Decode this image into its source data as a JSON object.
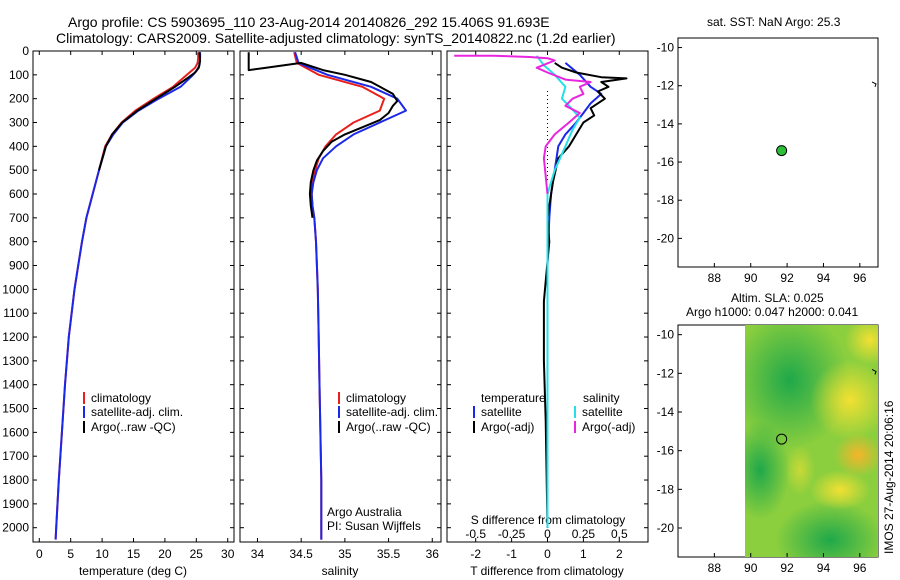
{
  "header": {
    "title_line1": "Argo profile: CS 5903695_110 23-Aug-2014 20140826_292 15.406S 91.693E",
    "title_line2": "Climatology: CARS2009. Satellite-adjusted climatology: synTS_20140822.nc (1.2d earlier)"
  },
  "side_label": "IMOS 27-Aug-2014 20:06:16",
  "colors": {
    "climatology": "#e8201c",
    "satellite": "#1c28e8",
    "argo": "#000000",
    "sat_diff": "#26e0e8",
    "argo_diff": "#e826e0",
    "marker": "#2bbf3a"
  },
  "chart_data": [
    {
      "type": "line",
      "xlabel": "temperature (deg C)",
      "ylabel": "",
      "xlim": [
        -1,
        31
      ],
      "ylim": [
        2060,
        0
      ],
      "xticks": [
        "0",
        "5",
        "10",
        "15",
        "20",
        "25",
        "30"
      ],
      "yticks": [
        "0",
        "100",
        "200",
        "300",
        "400",
        "500",
        "600",
        "700",
        "800",
        "900",
        "1000",
        "1100",
        "1200",
        "1300",
        "1400",
        "1500",
        "1600",
        "1700",
        "1800",
        "1900",
        "2000"
      ],
      "legend": [
        "climatology",
        "satellite-adj. clim.",
        "Argo(..raw -QC)"
      ],
      "series": [
        {
          "name": "climatology",
          "color": "#e8201c",
          "points": [
            [
              25.3,
              5
            ],
            [
              25.3,
              30
            ],
            [
              25.2,
              50
            ],
            [
              24.8,
              70
            ],
            [
              23.5,
              100
            ],
            [
              21.3,
              150
            ],
            [
              18.2,
              200
            ],
            [
              15.3,
              250
            ],
            [
              13.1,
              300
            ],
            [
              11.6,
              350
            ],
            [
              10.5,
              400
            ],
            [
              9.5,
              500
            ],
            [
              8.5,
              600
            ],
            [
              7.5,
              700
            ],
            [
              6.8,
              800
            ],
            [
              6.2,
              900
            ],
            [
              5.6,
              1000
            ],
            [
              4.7,
              1200
            ],
            [
              4.1,
              1400
            ],
            [
              3.6,
              1600
            ],
            [
              3.1,
              1800
            ],
            [
              2.7,
              2000
            ],
            [
              2.6,
              2050
            ]
          ]
        },
        {
          "name": "satellite-adj. clim.",
          "color": "#1c28e8",
          "points": [
            [
              25.6,
              5
            ],
            [
              25.6,
              30
            ],
            [
              25.5,
              60
            ],
            [
              25.1,
              80
            ],
            [
              24.5,
              100
            ],
            [
              22.5,
              150
            ],
            [
              19.0,
              200
            ],
            [
              15.8,
              250
            ],
            [
              13.3,
              300
            ],
            [
              11.8,
              350
            ],
            [
              10.6,
              400
            ],
            [
              9.5,
              500
            ],
            [
              8.5,
              600
            ],
            [
              7.5,
              700
            ],
            [
              6.8,
              800
            ],
            [
              6.2,
              900
            ],
            [
              5.6,
              1000
            ],
            [
              4.7,
              1200
            ],
            [
              4.1,
              1400
            ],
            [
              3.6,
              1600
            ],
            [
              3.1,
              1800
            ],
            [
              2.7,
              2000
            ],
            [
              2.6,
              2050
            ]
          ]
        },
        {
          "name": "Argo(..raw -QC)",
          "color": "#000000",
          "points": [
            [
              25.5,
              5
            ],
            [
              25.6,
              40
            ],
            [
              25.4,
              70
            ],
            [
              24.8,
              90
            ],
            [
              23.8,
              110
            ],
            [
              21.6,
              150
            ],
            [
              18.6,
              200
            ],
            [
              15.6,
              250
            ],
            [
              13.2,
              300
            ],
            [
              11.6,
              350
            ],
            [
              10.6,
              400
            ],
            [
              9.5,
              500
            ]
          ]
        }
      ]
    },
    {
      "type": "line",
      "xlabel": "salinity",
      "xlim": [
        33.8,
        36.1
      ],
      "ylim": [
        2060,
        0
      ],
      "xticks": [
        "34",
        "34.5",
        "35",
        "35.5",
        "36"
      ],
      "legend": [
        "climatology",
        "satellite-adj. clim.",
        "Argo(..raw -QC)"
      ],
      "annotation_line1": "Argo Australia",
      "annotation_line2": "PI: Susan Wijffels",
      "series": [
        {
          "name": "climatology",
          "color": "#e8201c",
          "points": [
            [
              34.42,
              5
            ],
            [
              34.45,
              50
            ],
            [
              34.7,
              100
            ],
            [
              35.2,
              150
            ],
            [
              35.45,
              200
            ],
            [
              35.4,
              250
            ],
            [
              35.1,
              300
            ],
            [
              34.9,
              350
            ],
            [
              34.78,
              400
            ],
            [
              34.7,
              450
            ],
            [
              34.66,
              500
            ],
            [
              34.63,
              550
            ],
            [
              34.62,
              600
            ],
            [
              34.63,
              650
            ],
            [
              34.65,
              700
            ],
            [
              34.67,
              800
            ],
            [
              34.68,
              900
            ],
            [
              34.69,
              1000
            ],
            [
              34.7,
              1200
            ],
            [
              34.71,
              1400
            ],
            [
              34.72,
              1600
            ],
            [
              34.73,
              1800
            ],
            [
              34.73,
              2000
            ],
            [
              34.73,
              2050
            ]
          ]
        },
        {
          "name": "satellite-adj. clim.",
          "color": "#1c28e8",
          "points": [
            [
              34.43,
              5
            ],
            [
              34.47,
              50
            ],
            [
              34.8,
              100
            ],
            [
              35.3,
              150
            ],
            [
              35.6,
              200
            ],
            [
              35.7,
              250
            ],
            [
              35.4,
              300
            ],
            [
              35.1,
              350
            ],
            [
              34.9,
              400
            ],
            [
              34.75,
              450
            ],
            [
              34.68,
              500
            ],
            [
              34.64,
              550
            ],
            [
              34.62,
              600
            ],
            [
              34.63,
              650
            ],
            [
              34.65,
              700
            ],
            [
              34.67,
              800
            ],
            [
              34.68,
              900
            ],
            [
              34.69,
              1000
            ],
            [
              34.7,
              1200
            ],
            [
              34.71,
              1400
            ],
            [
              34.72,
              1600
            ],
            [
              34.73,
              1800
            ],
            [
              34.73,
              2000
            ],
            [
              34.73,
              2050
            ]
          ]
        },
        {
          "name": "Argo(..raw -QC)",
          "color": "#000000",
          "points": [
            [
              33.9,
              5
            ],
            [
              33.9,
              80
            ],
            [
              34.1,
              70
            ],
            [
              34.5,
              50
            ],
            [
              34.75,
              80
            ],
            [
              35.0,
              100
            ],
            [
              35.3,
              130
            ],
            [
              35.45,
              160
            ],
            [
              35.55,
              180
            ],
            [
              35.6,
              210
            ],
            [
              35.55,
              230
            ],
            [
              35.5,
              260
            ],
            [
              35.4,
              290
            ],
            [
              35.2,
              320
            ],
            [
              35.0,
              350
            ],
            [
              34.85,
              380
            ],
            [
              34.75,
              420
            ],
            [
              34.68,
              460
            ],
            [
              34.64,
              500
            ],
            [
              34.61,
              550
            ],
            [
              34.6,
              600
            ],
            [
              34.61,
              650
            ],
            [
              34.63,
              700
            ]
          ]
        }
      ]
    },
    {
      "type": "line",
      "xlabel": "T difference from climatology",
      "sublabel": "S difference from climatology",
      "xlim": [
        -2.8,
        2.8
      ],
      "ylim": [
        2060,
        0
      ],
      "xticks": [
        "-2",
        "-1",
        "0",
        "1",
        "2"
      ],
      "xticks_top": [
        "-0.5",
        "-0.25",
        "0",
        "0.25",
        "0.5"
      ],
      "legend_group_t": "temperature",
      "legend_group_s": "salinity",
      "legend": [
        "satellite",
        "Argo(-adj)",
        "satellite",
        "Argo(-adj)"
      ],
      "series": [
        {
          "name": "satellite",
          "color": "#1c28e8",
          "points": [
            [
              0.5,
              50
            ],
            [
              0.9,
              100
            ],
            [
              1.2,
              150
            ],
            [
              1.5,
              180
            ],
            [
              1.2,
              220
            ],
            [
              1.0,
              260
            ],
            [
              0.8,
              300
            ],
            [
              0.5,
              350
            ],
            [
              0.3,
              400
            ],
            [
              0.2,
              500
            ],
            [
              0.1,
              600
            ],
            [
              0.05,
              700
            ],
            [
              0.0,
              900
            ],
            [
              0.0,
              2000
            ]
          ]
        },
        {
          "name": "Argo(-adj)",
          "color": "#000000",
          "points": [
            [
              0.2,
              50
            ],
            [
              0.4,
              70
            ],
            [
              0.8,
              90
            ],
            [
              1.5,
              110
            ],
            [
              2.2,
              115
            ],
            [
              1.5,
              130
            ],
            [
              1.7,
              150
            ],
            [
              1.4,
              170
            ],
            [
              1.6,
              200
            ],
            [
              1.2,
              240
            ],
            [
              1.3,
              270
            ],
            [
              1.0,
              300
            ],
            [
              0.8,
              350
            ],
            [
              0.6,
              400
            ],
            [
              0.3,
              450
            ],
            [
              0.15,
              550
            ],
            [
              0.0,
              700
            ],
            [
              0.05,
              800
            ],
            [
              -0.1,
              1050
            ],
            [
              -0.1,
              1300
            ],
            [
              -0.05,
              1550
            ],
            [
              0.0,
              2000
            ]
          ]
        },
        {
          "name": "satellite",
          "color": "#26e0e8",
          "points": [
            [
              -0.3,
              20
            ],
            [
              -0.1,
              60
            ],
            [
              0.2,
              100
            ],
            [
              0.5,
              150
            ],
            [
              0.4,
              200
            ],
            [
              0.6,
              230
            ],
            [
              0.9,
              280
            ],
            [
              0.7,
              330
            ],
            [
              0.5,
              400
            ],
            [
              0.2,
              500
            ],
            [
              0.0,
              600
            ],
            [
              0.0,
              2000
            ]
          ]
        },
        {
          "name": "Argo(-adj)",
          "color": "#e826e0",
          "points": [
            [
              -2.6,
              20
            ],
            [
              -2.2,
              20
            ],
            [
              -1.5,
              20
            ],
            [
              -0.5,
              25
            ],
            [
              0.0,
              30
            ],
            [
              0.2,
              40
            ],
            [
              -0.3,
              70
            ],
            [
              0.0,
              90
            ],
            [
              0.5,
              120
            ],
            [
              1.2,
              130
            ],
            [
              0.9,
              150
            ],
            [
              1.0,
              180
            ],
            [
              0.7,
              200
            ],
            [
              0.5,
              230
            ],
            [
              0.9,
              260
            ],
            [
              0.6,
              300
            ],
            [
              0.2,
              350
            ],
            [
              -0.05,
              400
            ],
            [
              -0.1,
              450
            ],
            [
              0.0,
              600
            ]
          ]
        }
      ]
    },
    {
      "type": "scatter",
      "title": "sat. SST: NaN Argo: 25.3",
      "xlim": [
        86,
        97
      ],
      "ylim": [
        -21.5,
        -9.5
      ],
      "xticks": [
        "88",
        "90",
        "92",
        "94",
        "96"
      ],
      "yticks": [
        "-10",
        "-12",
        "-14",
        "-16",
        "-18",
        "-20"
      ],
      "points": [
        [
          91.7,
          -15.4
        ]
      ]
    },
    {
      "type": "heatmap",
      "title_line1": "Altim. SLA: 0.025",
      "title_line2": "Argo h1000: 0.047 h2000: 0.041",
      "xlim": [
        86,
        97
      ],
      "ylim": [
        -21.5,
        -9.5
      ],
      "xticks": [
        "88",
        "90",
        "92",
        "94",
        "96"
      ],
      "yticks": [
        "-10",
        "-12",
        "-14",
        "-16",
        "-18",
        "-20"
      ],
      "points": [
        [
          91.7,
          -15.4
        ]
      ]
    }
  ]
}
